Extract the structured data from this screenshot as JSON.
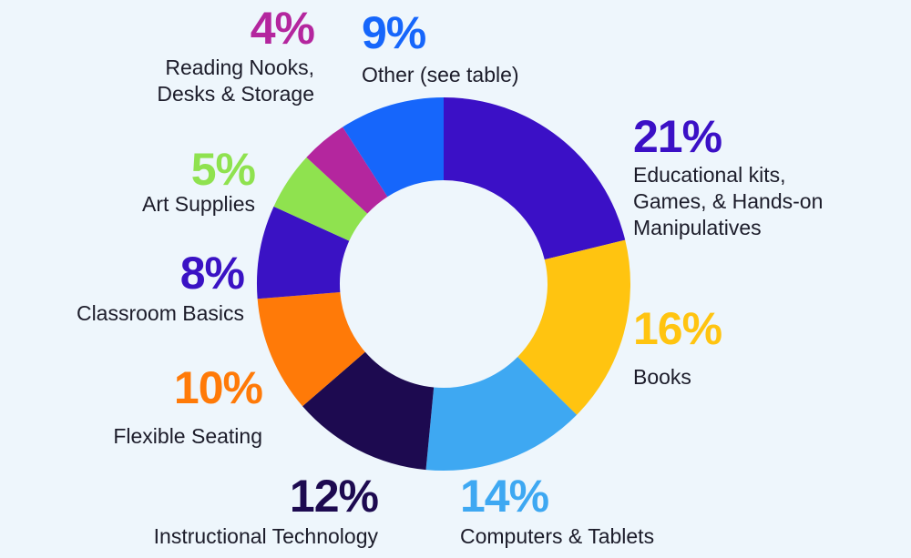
{
  "chart_data": {
    "type": "donut",
    "categories": [
      "Educational kits, Games, & Hands-on Manipulatives",
      "Books",
      "Computers & Tablets",
      "Instructional Technology",
      "Flexible Seating",
      "Classroom Basics",
      "Art Supplies",
      "Reading Nooks, Desks & Storage",
      "Other (see table)"
    ],
    "values": [
      21,
      16,
      14,
      12,
      10,
      8,
      5,
      4,
      9
    ],
    "value_labels": [
      "21%",
      "16%",
      "14%",
      "12%",
      "10%",
      "8%",
      "5%",
      "4%",
      "9%"
    ],
    "colors": [
      "#3b10c6",
      "#ffc410",
      "#3ea8f2",
      "#1d0a50",
      "#ff7a08",
      "#3a12c4",
      "#8fe24f",
      "#b4269e",
      "#1666fb"
    ]
  }
}
